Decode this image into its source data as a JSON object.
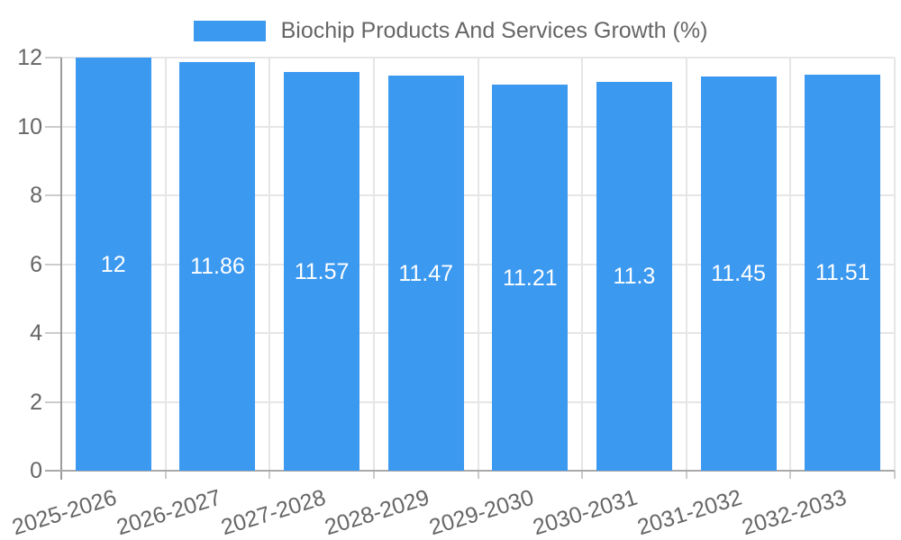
{
  "legend": {
    "label": "Biochip Products And Services Growth (%)"
  },
  "colors": {
    "bar": "#3c99f0",
    "grid": "#e6e6e6",
    "axis": "#9c9c9c",
    "baseline": "#aaaaaa",
    "tick": "#cccccc",
    "text": "#666666",
    "value_label": "#ffffff",
    "background": "#ffffff"
  },
  "chart_data": {
    "type": "bar",
    "title": "Biochip Products And Services Growth (%)",
    "categories": [
      "2025-2026",
      "2026-2027",
      "2027-2028",
      "2028-2029",
      "2029-2030",
      "2030-2031",
      "2031-2032",
      "2032-2033"
    ],
    "values": [
      12,
      11.86,
      11.57,
      11.47,
      11.21,
      11.3,
      11.45,
      11.51
    ],
    "value_labels": [
      "12",
      "11.86",
      "11.57",
      "11.47",
      "11.21",
      "11.3",
      "11.45",
      "11.51"
    ],
    "xlabel": "",
    "ylabel": "",
    "ylim": [
      0,
      12
    ],
    "y_ticks": [
      0,
      2,
      4,
      6,
      8,
      10,
      12
    ],
    "grid": true,
    "legend_position": "top",
    "x_label_rotation_deg": -17
  }
}
